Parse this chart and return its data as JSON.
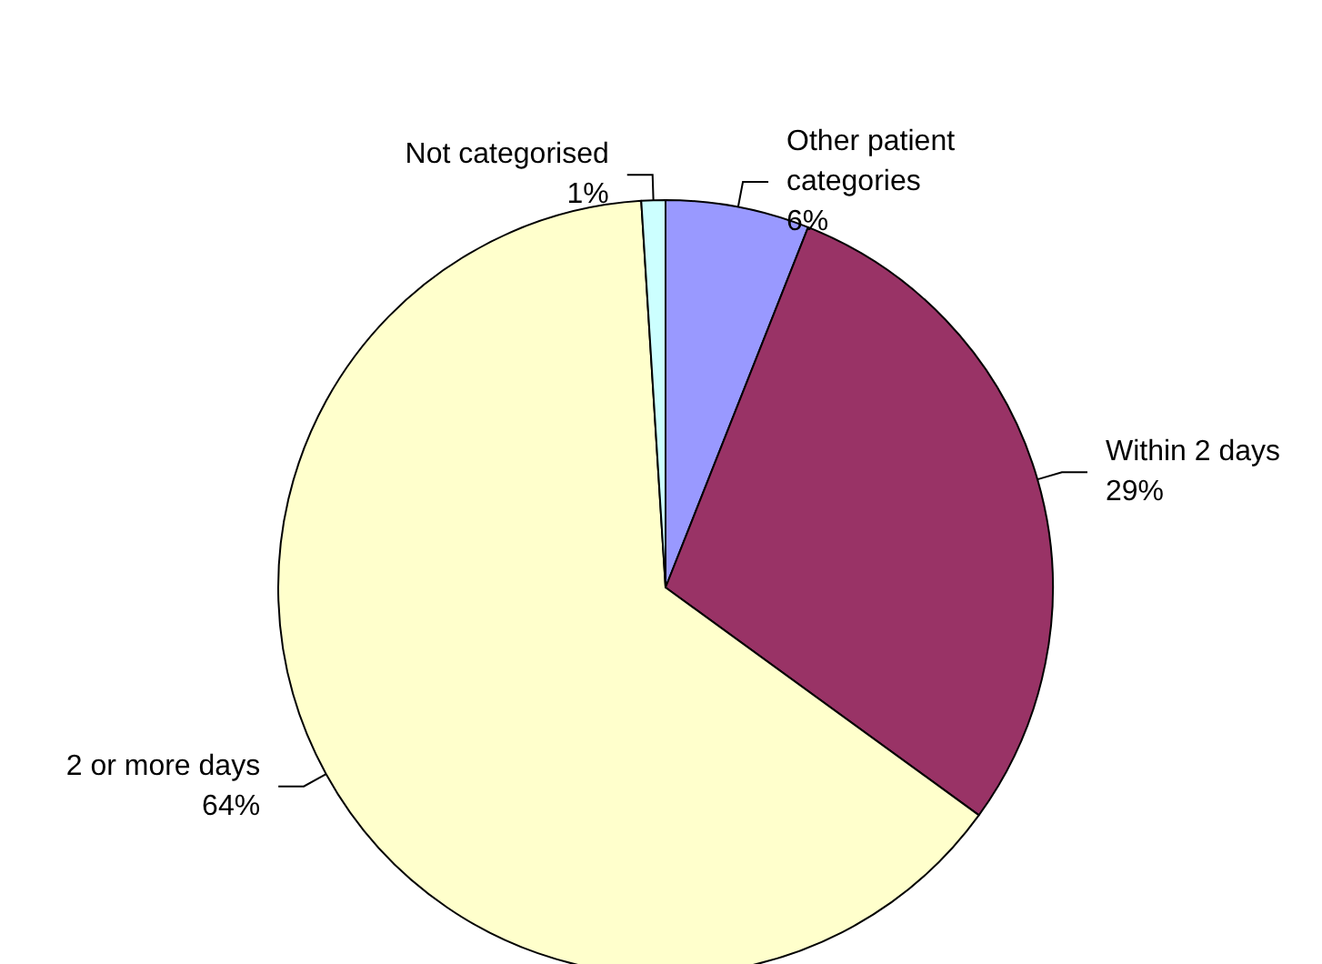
{
  "chart_data": {
    "type": "pie",
    "categories": [
      "Other patient categories",
      "Within 2 days",
      "2 or more days",
      "Not categorised"
    ],
    "values": [
      6,
      29,
      64,
      1
    ],
    "colors": [
      "#9999ff",
      "#993366",
      "#ffffcc",
      "#ccffff"
    ],
    "value_labels": [
      "6%",
      "29%",
      "64%",
      "1%"
    ],
    "legend": false
  }
}
